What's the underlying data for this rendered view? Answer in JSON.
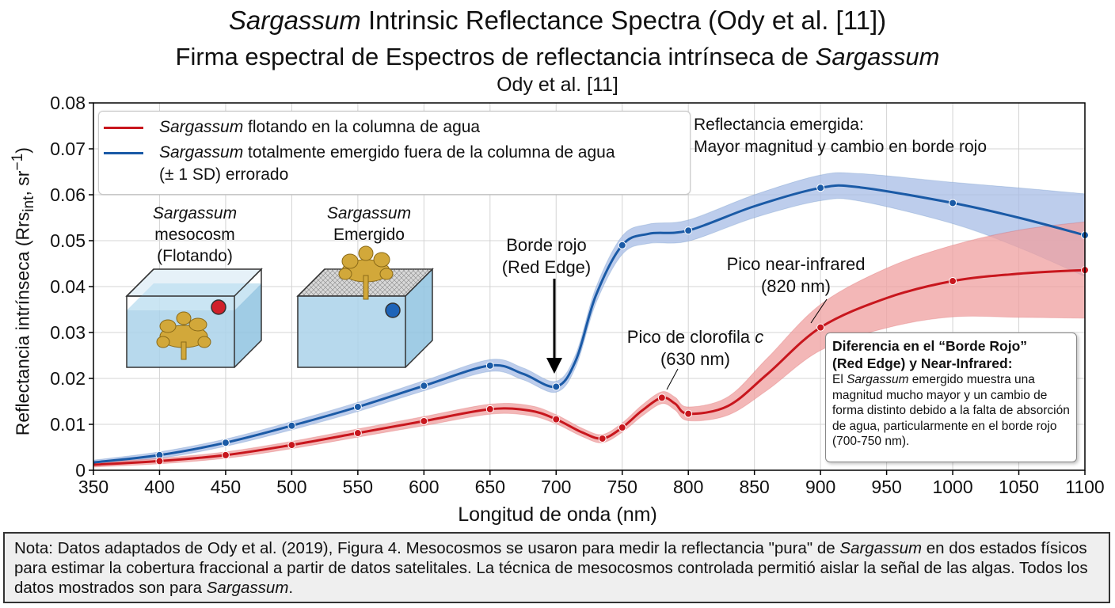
{
  "titles": {
    "line1_italic": "Sargassum",
    "line1_rest": " Intrinsic Reflectance Spectra (Ody et al. [11])",
    "line2_plain": "Firma espectral de Espectros de reflectancia intrínseca de ",
    "line2_italic": "Sargassum",
    "line3": "Ody et al. [11]"
  },
  "legend": {
    "entry1_italic": "Sargassum",
    "entry1_rest": " flotando en la columna de agua",
    "entry2_italic": "Sargassum",
    "entry2_rest": " totalmente emergido fuera de la columna de agua",
    "entry2_line2": "(± 1 SD) errorado"
  },
  "annotations": {
    "emergida_line1": "Reflectancia emergida:",
    "emergida_line2": "Mayor magnitud y cambio en borde rojo",
    "borde_line1": "Borde rojo",
    "borde_line2": "(Red Edge)",
    "nir_line1": "Pico near-infrared",
    "nir_line2": "(820 nm)",
    "clorofila_plain": "Pico de clorofila ",
    "clorofila_italic": "c",
    "clorofila_line2": "(630 nm)"
  },
  "insets": {
    "floating_italic": "Sargassum",
    "floating_line2": "mesocosm",
    "floating_line3": "(Flotando)",
    "emerged_italic": "Sargassum",
    "emerged_line2": "Emergido"
  },
  "infobox": {
    "title_line1": "Diferencia en el “Borde Rojo”",
    "title_line2": "(Red Edge) y Near-Infrared:",
    "body_pre": "El ",
    "body_italic": "Sargassum",
    "body_rest": " emergido muestra una magnitud mucho mayor y un cambio de forma distinto debido a la falta de absorción de agua, particularmente en el borde rojo (700-750 nm)."
  },
  "note": {
    "part1": "Nota: Datos adaptados de Ody et al. (2019), Figura 4. Mesocosmos se usaron para medir la reflectancia \"pura\" de ",
    "italic1": "Sargassum",
    "part2": " en dos estados físicos para estimar la cobertura fraccional a partir de datos satelitales. La técnica de mesocosmos controlada permitió aislar la señal de las algas. Todos los datos mostrados son para ",
    "italic2": "Sargassum",
    "part3": "."
  },
  "colors": {
    "floating": "#c8161d",
    "floating_band": "#f0a0a0",
    "emerged": "#1a5aa6",
    "emerged_band": "#a8bde6"
  },
  "chart_data": {
    "type": "line",
    "title": "Sargassum Intrinsic Reflectance Spectra (Ody et al. [11])",
    "xlabel": "Longitud de onda (nm)",
    "ylabel": "Reflectancia intrínseca (Rrs",
    "ylabel_sub": "int",
    "ylabel_tail": ", sr",
    "ylabel_sup": "−1",
    "ylabel_end": ")",
    "xlim": [
      350,
      1100
    ],
    "ylim": [
      0,
      0.08
    ],
    "xticks": [
      350,
      400,
      450,
      500,
      550,
      600,
      650,
      700,
      750,
      800,
      850,
      900,
      950,
      1000,
      1050,
      1100
    ],
    "yticks": [
      0,
      0.01,
      0.02,
      0.03,
      0.04,
      0.05,
      0.06,
      0.07,
      0.08
    ],
    "ytick_labels": [
      "0",
      "0.01",
      "0.02",
      "0.03",
      "0.04",
      "0.05",
      "0.06",
      "0.07",
      "0.08"
    ],
    "grid": true,
    "series": [
      {
        "name": "Sargassum flotando en la columna de agua",
        "curve_x": [
          350,
          400,
          450,
          500,
          550,
          600,
          650,
          680,
          700,
          720,
          735,
          750,
          765,
          780,
          790,
          800,
          830,
          860,
          900,
          950,
          1000,
          1050,
          1100
        ],
        "curve_y": [
          0.0012,
          0.002,
          0.0033,
          0.0055,
          0.0081,
          0.0107,
          0.0133,
          0.013,
          0.0111,
          0.0082,
          0.0069,
          0.0093,
          0.013,
          0.0158,
          0.0145,
          0.0123,
          0.014,
          0.021,
          0.0311,
          0.0375,
          0.0412,
          0.0428,
          0.0436
        ],
        "band_sd": [
          0.0005,
          0.0006,
          0.0007,
          0.0008,
          0.0009,
          0.001,
          0.0011,
          0.0011,
          0.001,
          0.0009,
          0.0009,
          0.001,
          0.0012,
          0.0013,
          0.0014,
          0.0015,
          0.002,
          0.0035,
          0.005,
          0.0065,
          0.0078,
          0.0095,
          0.0105
        ],
        "markers_x": [
          400,
          450,
          500,
          550,
          600,
          650,
          700,
          735,
          750,
          780,
          800,
          900,
          1000,
          1100
        ],
        "markers_y": [
          0.002,
          0.0033,
          0.0055,
          0.0081,
          0.0107,
          0.0133,
          0.0111,
          0.0069,
          0.0093,
          0.0158,
          0.0123,
          0.0311,
          0.0412,
          0.0436
        ]
      },
      {
        "name": "Sargassum totalmente emergido fuera de la columna de agua (± 1 SD) errorado",
        "curve_x": [
          350,
          400,
          450,
          500,
          550,
          600,
          650,
          675,
          700,
          715,
          730,
          750,
          770,
          800,
          850,
          900,
          930,
          1000,
          1050,
          1100
        ],
        "curve_y": [
          0.0017,
          0.0033,
          0.006,
          0.0097,
          0.0138,
          0.0184,
          0.0228,
          0.021,
          0.0182,
          0.024,
          0.038,
          0.049,
          0.0515,
          0.0522,
          0.0575,
          0.0615,
          0.0616,
          0.0582,
          0.055,
          0.0512
        ],
        "band_sd": [
          0.0005,
          0.0007,
          0.0008,
          0.0009,
          0.001,
          0.0011,
          0.0013,
          0.0013,
          0.0012,
          0.0014,
          0.0017,
          0.002,
          0.0021,
          0.0023,
          0.0025,
          0.0028,
          0.003,
          0.0045,
          0.0065,
          0.009
        ],
        "markers_x": [
          400,
          450,
          500,
          550,
          600,
          650,
          700,
          750,
          800,
          900,
          1000,
          1100
        ],
        "markers_y": [
          0.0033,
          0.006,
          0.0097,
          0.0138,
          0.0184,
          0.0228,
          0.0182,
          0.049,
          0.0522,
          0.0615,
          0.0582,
          0.0512
        ]
      }
    ]
  }
}
